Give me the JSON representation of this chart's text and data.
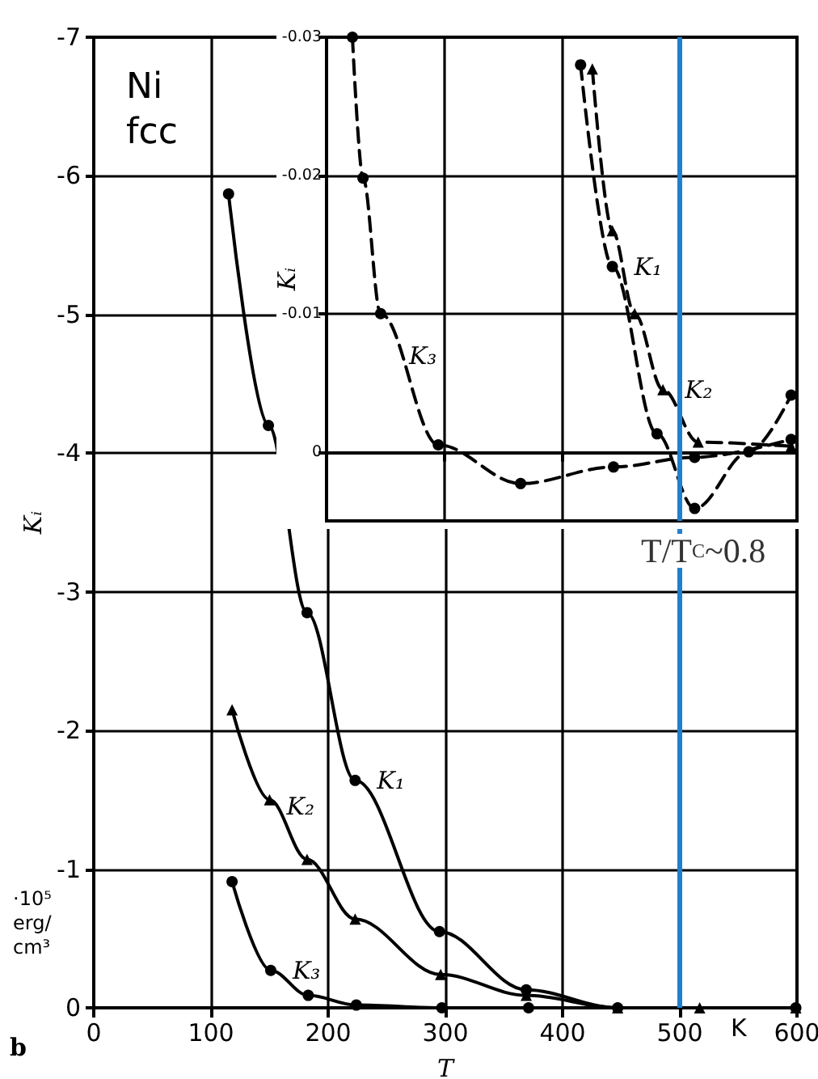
{
  "chart_data": [
    {
      "type": "line",
      "xlabel": "T",
      "ylabel": "Kᵢ",
      "xlim": [
        0,
        600
      ],
      "xticks": [
        0,
        100,
        200,
        300,
        400,
        500,
        600
      ],
      "ylim": [
        0,
        -7
      ],
      "yticks": [
        -7,
        -6,
        -5,
        -4,
        -3,
        -2,
        -1,
        0
      ],
      "grid": true,
      "legend": false,
      "line_style": "solid",
      "annotations": [
        "Ni fcc",
        "·10⁵ erg/cm³",
        "K",
        "b"
      ],
      "ref_lines": [
        {
          "axis": "x",
          "value": 500,
          "label": "T/T$_{C}$~0.8",
          "color": "#1f80d0"
        }
      ],
      "series": [
        {
          "name": "K₁",
          "color": "#000000",
          "marker": "circle",
          "x": [
            115,
            149,
            182,
            223,
            295,
            369,
            447,
            599
          ],
          "values": [
            -5.87,
            -4.2,
            -2.85,
            -1.64,
            -0.55,
            -0.13,
            0,
            0
          ]
        },
        {
          "name": "K₂",
          "color": "#000000",
          "marker": "triangle",
          "x": [
            118,
            150,
            182,
            223,
            296,
            369,
            447,
            517,
            599
          ],
          "values": [
            -2.15,
            -1.5,
            -1.07,
            -0.64,
            -0.24,
            -0.09,
            0,
            0,
            0
          ]
        },
        {
          "name": "K₃",
          "color": "#000000",
          "marker": "circle",
          "x": [
            118,
            151,
            183,
            224,
            297,
            371
          ],
          "values": [
            -0.91,
            -0.27,
            -0.09,
            -0.02,
            0,
            0
          ]
        }
      ]
    },
    {
      "type": "line",
      "ylabel": "Kᵢ",
      "xlim": [
        200,
        600
      ],
      "xticks": [
        200,
        300,
        400,
        500,
        600
      ],
      "ylim": [
        0.005,
        -0.03
      ],
      "yticks": [
        {
          "value": -0.03,
          "label": "-0.03"
        },
        {
          "value": -0.02,
          "label": "-0.02"
        },
        {
          "value": -0.01,
          "label": "-0.01"
        },
        0
      ],
      "tick_labels": "y",
      "grid": true,
      "legend": false,
      "line_style": "dashed",
      "ref_lines": [
        {
          "axis": "x",
          "value": 500,
          "color": "#1f80d0"
        }
      ],
      "series": [
        {
          "name": "K₁",
          "color": "#000000",
          "marker": "circle",
          "x": [
            416,
            443,
            481,
            513,
            559,
            595
          ],
          "values": [
            -0.028,
            -0.0134,
            -0.0013,
            0.0041,
            0,
            -0.0041
          ]
        },
        {
          "name": "K₂",
          "color": "#000000",
          "marker": "triangle",
          "x": [
            426,
            443,
            462,
            486,
            516,
            595
          ],
          "values": [
            -0.0277,
            -0.016,
            -0.01,
            -0.0045,
            -0.0007,
            -0.0004
          ]
        },
        {
          "name": "K₃",
          "color": "#000000",
          "marker": "circle",
          "x": [
            222,
            231,
            246,
            295,
            365,
            444,
            513,
            595
          ],
          "values": [
            -0.03,
            -0.0198,
            -0.01,
            -0.0005,
            0.0023,
            0.0011,
            0.0004,
            -0.0009
          ]
        }
      ]
    }
  ]
}
